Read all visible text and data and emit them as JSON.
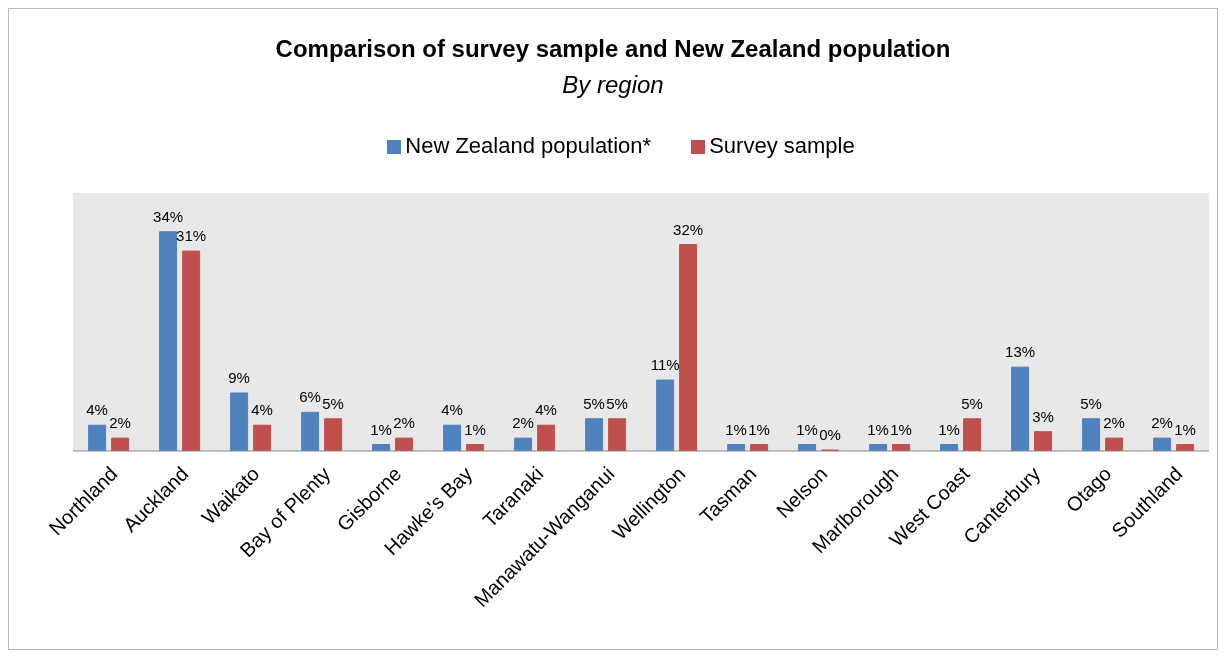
{
  "chart_data": {
    "type": "bar",
    "title": "Comparison of survey sample and New Zealand population",
    "subtitle": "By region",
    "categories": [
      "Northland",
      "Auckland",
      "Waikato",
      "Bay of Plenty",
      "Gisborne",
      "Hawke's Bay",
      "Taranaki",
      "Manawatu-Wanganui",
      "Wellington",
      "Tasman",
      "Nelson",
      "Marlborough",
      "West Coast",
      "Canterbury",
      "Otago",
      "Southland"
    ],
    "series": [
      {
        "name": "New Zealand population*",
        "color": "#4f81bd",
        "values": [
          4,
          34,
          9,
          6,
          1,
          4,
          2,
          5,
          11,
          1,
          1,
          1,
          1,
          13,
          5,
          2
        ],
        "value_labels": [
          "4%",
          "34%",
          "9%",
          "6%",
          "1%",
          "4%",
          "2%",
          "5%",
          "11%",
          "1%",
          "1%",
          "1%",
          "1%",
          "13%",
          "5%",
          "2%"
        ]
      },
      {
        "name": "Survey sample",
        "color": "#c0504d",
        "values": [
          2,
          31,
          4,
          5,
          2,
          1,
          4,
          5,
          32,
          1,
          0,
          1,
          5,
          3,
          2,
          1
        ],
        "value_labels": [
          "2%",
          "31%",
          "4%",
          "5%",
          "2%",
          "1%",
          "4%",
          "5%",
          "32%",
          "1%",
          "0%",
          "1%",
          "5%",
          "3%",
          "2%",
          "1%"
        ]
      }
    ],
    "ylim": [
      0,
      40
    ],
    "tick_labels": "x",
    "grid": false,
    "legend": "top"
  }
}
